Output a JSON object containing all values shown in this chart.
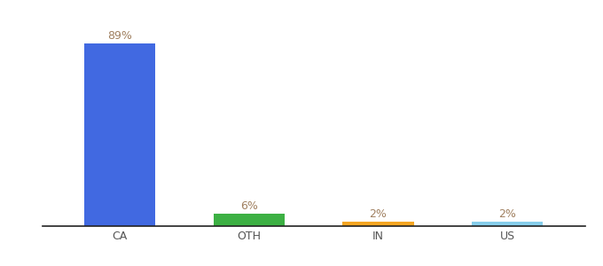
{
  "categories": [
    "CA",
    "OTH",
    "IN",
    "US"
  ],
  "values": [
    89,
    6,
    2,
    2
  ],
  "bar_colors": [
    "#4169e1",
    "#3cb043",
    "#f5a623",
    "#87ceeb"
  ],
  "label_color": "#a08060",
  "value_labels": [
    "89%",
    "6%",
    "2%",
    "2%"
  ],
  "background_color": "#ffffff",
  "ylim": [
    0,
    100
  ],
  "bar_width": 0.55,
  "label_fontsize": 9,
  "tick_fontsize": 9
}
